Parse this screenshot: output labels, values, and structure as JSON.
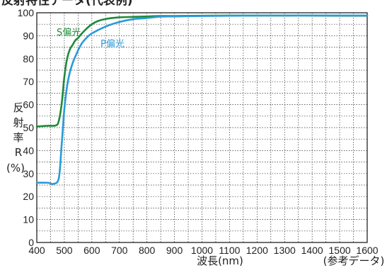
{
  "chart_data": {
    "type": "line",
    "title": "反射特性データ(代表例)",
    "xlabel": "波長(nm)",
    "ylabel": "反射率R(%)",
    "ylabel_lines": [
      "反",
      "射",
      "率",
      "R",
      "(%)"
    ],
    "note": "(参考データ)",
    "xlim": [
      400,
      1600
    ],
    "ylim": [
      0,
      100
    ],
    "x_ticks": [
      400,
      500,
      600,
      700,
      800,
      900,
      1000,
      1100,
      1200,
      1300,
      1400,
      1500,
      1600
    ],
    "y_ticks": [
      0,
      10,
      20,
      30,
      40,
      50,
      60,
      70,
      80,
      90,
      100
    ],
    "grid": true,
    "series": [
      {
        "name": "S偏光",
        "color": "#1f8a3a",
        "x": [
          400,
          440,
          470,
          480,
          490,
          500,
          510,
          520,
          530,
          540,
          550,
          560,
          580,
          600,
          620,
          650,
          700,
          750,
          800,
          850,
          900,
          1000,
          1100,
          1200,
          1300,
          1400,
          1500,
          1600
        ],
        "y": [
          50.5,
          50.8,
          51,
          53,
          60,
          72,
          80,
          84,
          86,
          88,
          89,
          90.5,
          93,
          95,
          96.3,
          97.3,
          98,
          98.2,
          98.4,
          98.6,
          98.6,
          98.7,
          98.8,
          98.8,
          98.8,
          98.8,
          98.7,
          98.7
        ]
      },
      {
        "name": "P偏光",
        "color": "#2a9ad8",
        "x": [
          400,
          440,
          460,
          480,
          490,
          500,
          510,
          520,
          530,
          540,
          560,
          580,
          600,
          650,
          700,
          750,
          800,
          850,
          900,
          1000,
          1100,
          1200,
          1300,
          1400,
          1500,
          1600
        ],
        "y": [
          26,
          26,
          25.5,
          28,
          42,
          58,
          68,
          74,
          78,
          81,
          86,
          89,
          91,
          94,
          96,
          97.2,
          97.7,
          98.3,
          98.4,
          98.6,
          98.7,
          98.8,
          98.8,
          98.8,
          98.8,
          98.8
        ]
      }
    ]
  }
}
